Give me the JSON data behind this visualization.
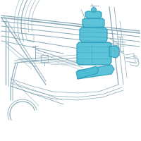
{
  "bg_color": "#ffffff",
  "line_color": "#8aabb8",
  "highlight_fill": "#4bbdd4",
  "highlight_edge": "#2a9ab8",
  "highlight_alpha": 0.9,
  "lw": 0.6,
  "fig_size": [
    2.0,
    2.0
  ],
  "dpi": 100
}
